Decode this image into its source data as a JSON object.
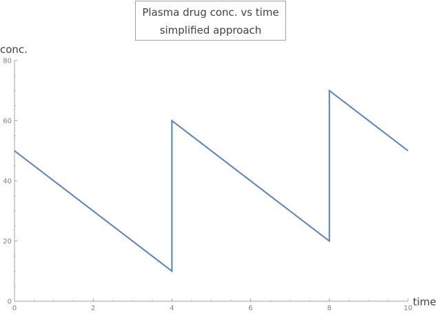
{
  "chart_data": {
    "type": "line",
    "title_lines": [
      "Plasma drug conc. vs time",
      "simplified approach"
    ],
    "xlabel": "time",
    "ylabel": "conc.",
    "xlim": [
      0,
      10
    ],
    "ylim": [
      0,
      80
    ],
    "xticks": [
      0,
      2,
      4,
      6,
      8,
      10
    ],
    "yticks": [
      0,
      20,
      40,
      60,
      80
    ],
    "grid": false,
    "series": [
      {
        "color": "#5b7fb5",
        "x": [
          0,
          4,
          4,
          8,
          8,
          10
        ],
        "y": [
          50,
          10,
          60,
          20,
          70,
          50
        ]
      }
    ]
  }
}
